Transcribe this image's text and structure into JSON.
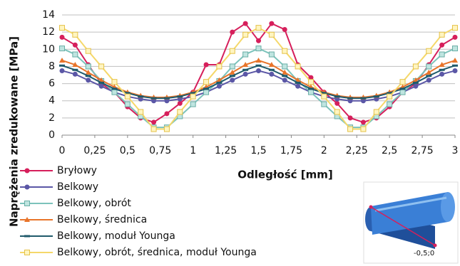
{
  "chart_data": {
    "type": "line",
    "y_label": "Naprężenia zredukowane [MPa]",
    "x_label": "Odległość [mm]",
    "x": [
      0,
      0.1,
      0.2,
      0.3,
      0.4,
      0.5,
      0.6,
      0.7,
      0.8,
      0.9,
      1.0,
      1.1,
      1.2,
      1.3,
      1.4,
      1.5,
      1.6,
      1.7,
      1.8,
      1.9,
      2.0,
      2.1,
      2.2,
      2.3,
      2.4,
      2.5,
      2.6,
      2.7,
      2.8,
      2.9,
      3.0
    ],
    "xlim": [
      0,
      3
    ],
    "xticks": [
      0,
      {
        "value": 0.25,
        "label": "0,25"
      },
      {
        "value": 0.5,
        "label": "0,5"
      },
      {
        "value": 0.75,
        "label": "0,75"
      },
      1,
      {
        "value": 1.25,
        "label": "1,25"
      },
      {
        "value": 1.5,
        "label": "1,5"
      },
      {
        "value": 1.75,
        "label": "1,75"
      },
      2,
      {
        "value": 2.25,
        "label": "2,25"
      },
      {
        "value": 2.5,
        "label": "2,5"
      },
      {
        "value": 2.75,
        "label": "2,75"
      },
      3
    ],
    "ylim": [
      0,
      14
    ],
    "yticks": [
      0,
      2,
      4,
      6,
      8,
      10,
      12,
      14
    ],
    "grid": true,
    "series": [
      {
        "name": "Bryłowy",
        "color": "#d61f5b",
        "marker": "circle",
        "values": [
          11.4,
          10.5,
          8.2,
          6.0,
          5.0,
          3.3,
          2.0,
          1.5,
          2.5,
          3.7,
          5.0,
          8.2,
          8.2,
          12.0,
          13.0,
          11.0,
          13.0,
          12.3,
          8.2,
          6.7,
          5.0,
          3.7,
          2.0,
          1.5,
          2.0,
          3.3,
          5.0,
          6.0,
          8.2,
          10.5,
          11.4
        ]
      },
      {
        "name": "Belkowy",
        "color": "#5b57a6",
        "marker": "circle",
        "values": [
          7.5,
          7.1,
          6.4,
          5.7,
          5.0,
          4.5,
          4.2,
          4.0,
          4.0,
          4.2,
          4.5,
          5.0,
          5.7,
          6.4,
          7.1,
          7.5,
          7.1,
          6.4,
          5.7,
          5.0,
          4.5,
          4.2,
          4.0,
          4.0,
          4.2,
          4.5,
          5.0,
          5.7,
          6.4,
          7.1,
          7.5
        ]
      },
      {
        "name": "Belkowy, obrót",
        "color": "#7cc3bb",
        "marker": "square",
        "values": [
          10.1,
          9.4,
          8.0,
          6.3,
          5.0,
          3.6,
          2.2,
          0.9,
          0.9,
          2.2,
          3.6,
          5.0,
          6.3,
          8.0,
          9.4,
          10.1,
          9.4,
          8.0,
          6.3,
          5.0,
          3.6,
          2.2,
          0.9,
          0.9,
          2.2,
          3.6,
          5.0,
          6.3,
          8.0,
          9.4,
          10.1
        ]
      },
      {
        "name": "Belkowy, średnica",
        "color": "#e8742a",
        "marker": "triangle",
        "values": [
          8.7,
          8.2,
          7.3,
          6.4,
          5.6,
          5.0,
          4.6,
          4.4,
          4.4,
          4.6,
          5.0,
          5.6,
          6.4,
          7.3,
          8.2,
          8.7,
          8.2,
          7.3,
          6.4,
          5.6,
          5.0,
          4.6,
          4.4,
          4.4,
          4.6,
          5.0,
          5.6,
          6.4,
          7.3,
          8.2,
          8.7
        ]
      },
      {
        "name": "Belkowy, moduł Younga",
        "color": "#1f5a6b",
        "marker": "dash",
        "values": [
          8.1,
          7.6,
          6.9,
          6.1,
          5.4,
          4.9,
          4.5,
          4.3,
          4.3,
          4.5,
          4.9,
          5.4,
          6.1,
          6.9,
          7.6,
          8.1,
          7.6,
          6.9,
          6.1,
          5.4,
          4.9,
          4.5,
          4.3,
          4.3,
          4.5,
          4.9,
          5.4,
          6.1,
          6.9,
          7.6,
          8.1
        ]
      },
      {
        "name": "Belkowy, obrót, średnica, moduł Younga",
        "color": "#f5d86a",
        "marker": "square",
        "values": [
          12.5,
          11.7,
          9.8,
          8.0,
          6.2,
          4.5,
          2.7,
          0.7,
          0.7,
          2.7,
          4.5,
          6.2,
          8.0,
          9.8,
          11.7,
          12.5,
          11.7,
          9.8,
          8.0,
          6.2,
          4.5,
          2.7,
          0.7,
          0.7,
          2.7,
          4.5,
          6.2,
          8.0,
          9.8,
          11.7,
          12.5
        ]
      }
    ]
  },
  "inset": {
    "label": "-0,5;0"
  }
}
